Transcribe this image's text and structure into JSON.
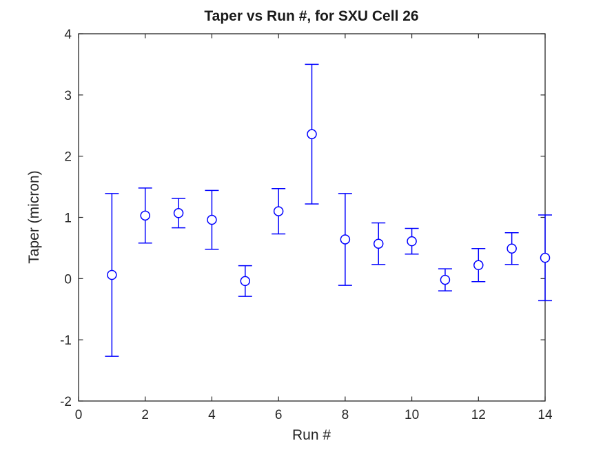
{
  "figure": {
    "background_color": "#ffffff"
  },
  "chart_data": {
    "type": "errorbar",
    "title": "Taper vs Run #, for SXU Cell 26",
    "xlabel": "Run #",
    "ylabel": "Taper (micron)",
    "xlim": [
      0,
      14
    ],
    "ylim": [
      -2,
      4
    ],
    "xticks": [
      0,
      2,
      4,
      6,
      8,
      10,
      12,
      14
    ],
    "yticks": [
      -2,
      -1,
      0,
      1,
      2,
      3,
      4
    ],
    "grid": false,
    "legend": null,
    "x": [
      1,
      2,
      3,
      4,
      5,
      6,
      7,
      8,
      9,
      10,
      11,
      12,
      13,
      14
    ],
    "y": [
      0.06,
      1.03,
      1.07,
      0.96,
      -0.04,
      1.1,
      2.36,
      0.64,
      0.57,
      0.61,
      -0.02,
      0.22,
      0.49,
      0.34
    ],
    "yerr": [
      1.33,
      0.45,
      0.24,
      0.48,
      0.25,
      0.37,
      1.14,
      0.75,
      0.34,
      0.21,
      0.18,
      0.27,
      0.26,
      0.7
    ],
    "marker": "open-circle",
    "series_color": "#0000ff",
    "axis_color": "#262626"
  }
}
